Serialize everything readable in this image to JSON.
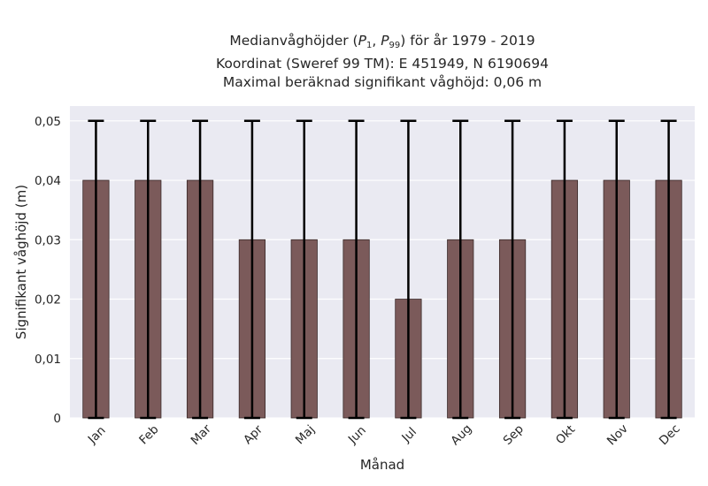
{
  "chart_data": {
    "type": "bar",
    "title_lines": [
      "Medianvåghöjder (P1, P99) för år 1979 - 2019",
      "Koordinat (Sweref 99 TM): E 451949, N 6190694",
      "Maximal beräknad signifikant våghöjd: 0,06 m"
    ],
    "title_parts": {
      "prefix": "Medianvåghöjder (",
      "p1_letter": "P",
      "p1_sub": "1",
      "sep": ", ",
      "p99_letter": "P",
      "p99_sub": "99",
      "suffix": ") för år 1979 - 2019"
    },
    "xlabel": "Månad",
    "ylabel": "Signifikant våghöjd (m)",
    "categories": [
      "Jan",
      "Feb",
      "Mar",
      "Apr",
      "Maj",
      "Jun",
      "Jul",
      "Aug",
      "Sep",
      "Okt",
      "Nov",
      "Dec"
    ],
    "values": [
      0.04,
      0.04,
      0.04,
      0.03,
      0.03,
      0.03,
      0.02,
      0.03,
      0.03,
      0.04,
      0.04,
      0.04
    ],
    "error_low": [
      0,
      0,
      0,
      0,
      0,
      0,
      0,
      0,
      0,
      0,
      0,
      0
    ],
    "error_high": [
      0.05,
      0.05,
      0.05,
      0.05,
      0.05,
      0.05,
      0.05,
      0.05,
      0.05,
      0.05,
      0.05,
      0.05
    ],
    "ylim": [
      0,
      0.0525
    ],
    "yticks": [
      0,
      0.01,
      0.02,
      0.03,
      0.04,
      0.05
    ],
    "ytick_labels": [
      "0",
      "0,01",
      "0,02",
      "0,03",
      "0,04",
      "0,05"
    ],
    "grid": true,
    "colors": {
      "bar": "#7b5a5a",
      "bar_edge": "#3a2a2a",
      "error": "#000000",
      "plot_bg": "#eaeaf2",
      "grid": "#ffffff"
    }
  }
}
